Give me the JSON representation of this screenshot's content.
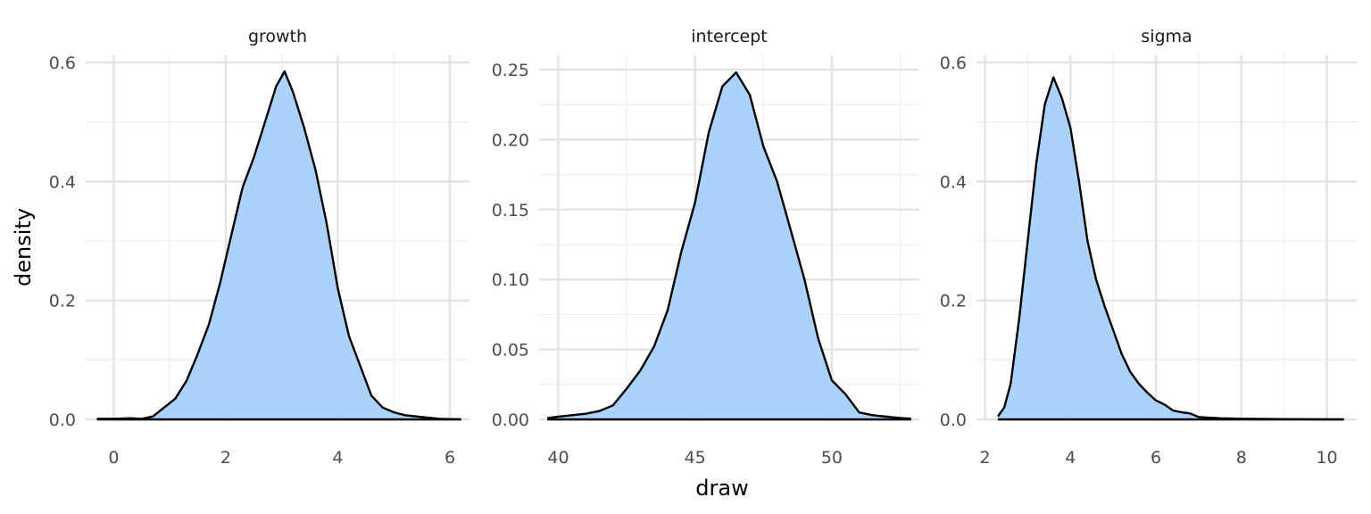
{
  "chart_data": {
    "type": "area",
    "xlabel": "draw",
    "ylabel": "density",
    "fill_color": "#a7d0fa",
    "line_color": "#000000",
    "grid": true,
    "legend": "none",
    "panels": [
      {
        "title": "growth",
        "xlim": [
          -0.5,
          6.35
        ],
        "ylim": [
          0,
          0.6
        ],
        "x_ticks": [
          0,
          2,
          4,
          6
        ],
        "y_ticks": [
          0.0,
          0.2,
          0.4,
          0.6
        ],
        "x_tick_labels": [
          "0",
          "2",
          "4",
          "6"
        ],
        "y_tick_labels": [
          "0.0",
          "0.2",
          "0.4",
          "0.6"
        ],
        "x": [
          -0.3,
          0.0,
          0.3,
          0.5,
          0.7,
          0.9,
          1.1,
          1.3,
          1.5,
          1.7,
          1.9,
          2.1,
          2.3,
          2.5,
          2.7,
          2.9,
          3.05,
          3.2,
          3.4,
          3.6,
          3.8,
          4.0,
          4.2,
          4.4,
          4.6,
          4.8,
          5.0,
          5.2,
          5.4,
          5.6,
          5.8,
          6.0,
          6.2
        ],
        "y": [
          0.001,
          0.001,
          0.002,
          0.001,
          0.005,
          0.02,
          0.035,
          0.065,
          0.11,
          0.16,
          0.23,
          0.31,
          0.39,
          0.44,
          0.5,
          0.56,
          0.585,
          0.55,
          0.49,
          0.42,
          0.33,
          0.22,
          0.14,
          0.09,
          0.04,
          0.02,
          0.012,
          0.007,
          0.005,
          0.003,
          0.001,
          0.0005,
          0.0003
        ]
      },
      {
        "title": "intercept",
        "xlim": [
          39.3,
          53.2
        ],
        "ylim": [
          0,
          0.25
        ],
        "x_ticks": [
          40,
          45,
          50
        ],
        "y_ticks": [
          0.0,
          0.05,
          0.1,
          0.15,
          0.2,
          0.25
        ],
        "x_tick_labels": [
          "40",
          "45",
          "50"
        ],
        "y_tick_labels": [
          "0.00",
          "0.05",
          "0.10",
          "0.15",
          "0.20",
          "0.25"
        ],
        "x": [
          39.6,
          40.0,
          40.5,
          41.0,
          41.5,
          42.0,
          42.5,
          43.0,
          43.5,
          44.0,
          44.5,
          45.0,
          45.5,
          46.0,
          46.5,
          47.0,
          47.5,
          48.0,
          48.5,
          49.0,
          49.5,
          50.0,
          50.5,
          51.0,
          51.5,
          52.0,
          52.5,
          52.9
        ],
        "y": [
          0.001,
          0.002,
          0.003,
          0.004,
          0.006,
          0.01,
          0.022,
          0.035,
          0.052,
          0.078,
          0.12,
          0.155,
          0.205,
          0.238,
          0.248,
          0.232,
          0.195,
          0.17,
          0.135,
          0.1,
          0.058,
          0.028,
          0.018,
          0.005,
          0.003,
          0.002,
          0.001,
          0.0005
        ]
      },
      {
        "title": "sigma",
        "xlim": [
          1.8,
          10.7
        ],
        "ylim": [
          0,
          0.6
        ],
        "x_ticks": [
          2,
          4,
          6,
          8,
          10
        ],
        "y_ticks": [
          0.0,
          0.2,
          0.4,
          0.6
        ],
        "x_tick_labels": [
          "2",
          "4",
          "6",
          "8",
          "10"
        ],
        "y_tick_labels": [
          "0.0",
          "0.2",
          "0.4",
          "0.6"
        ],
        "x": [
          2.3,
          2.45,
          2.6,
          2.8,
          3.0,
          3.2,
          3.4,
          3.6,
          3.8,
          4.0,
          4.2,
          4.4,
          4.6,
          4.8,
          5.0,
          5.2,
          5.4,
          5.6,
          5.8,
          6.0,
          6.2,
          6.4,
          6.6,
          6.8,
          7.0,
          7.2,
          7.5,
          8.0,
          8.5,
          9.0,
          9.5,
          10.0,
          10.4
        ],
        "y": [
          0.005,
          0.02,
          0.06,
          0.17,
          0.3,
          0.43,
          0.53,
          0.575,
          0.54,
          0.49,
          0.4,
          0.3,
          0.235,
          0.19,
          0.15,
          0.11,
          0.08,
          0.06,
          0.045,
          0.032,
          0.025,
          0.015,
          0.012,
          0.01,
          0.004,
          0.003,
          0.002,
          0.001,
          0.0008,
          0.0005,
          0.0003,
          0.0002,
          0.0001
        ]
      }
    ]
  }
}
